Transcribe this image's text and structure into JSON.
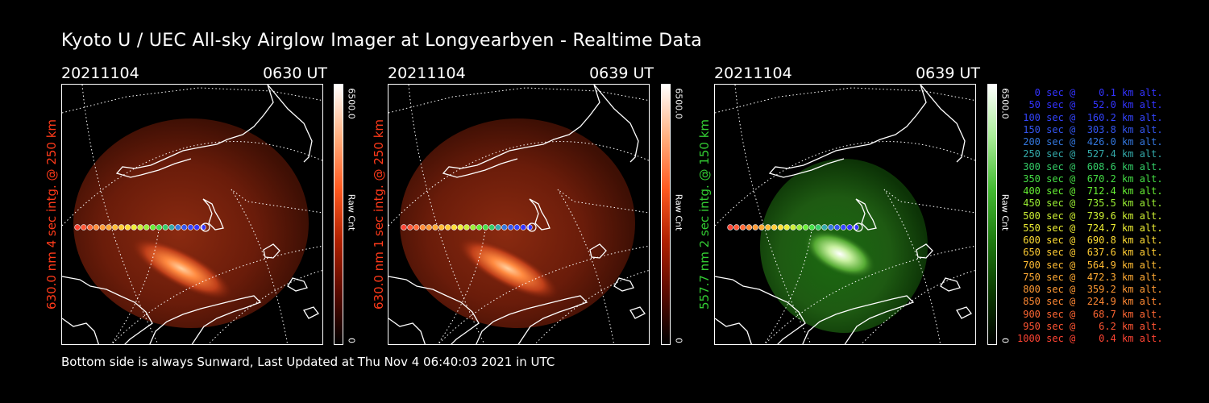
{
  "title": "Kyoto U / UEC All-sky Airglow Imager at Longyearbyen - Realtime Data",
  "footer": "Bottom side is always Sunward, Last Updated at Thu Nov  4 06:40:03 2021 in UTC",
  "panels": [
    {
      "date": "20211104",
      "time": "0630 UT",
      "side_label": "630.0 nm 4 sec intg. @ 250 km",
      "colorbar_max": "6500.0",
      "colorbar_min": "0",
      "colorbar_label": "Raw Cnt",
      "color": "#ff3a1a"
    },
    {
      "date": "20211104",
      "time": "0639 UT",
      "side_label": "630.0 nm 1 sec intg. @ 250 km",
      "colorbar_max": "6500.0",
      "colorbar_min": "0",
      "colorbar_label": "Raw Cnt",
      "color": "#ff3a1a"
    },
    {
      "date": "20211104",
      "time": "0639 UT",
      "side_label": "557.7 nm 2 sec intg. @ 150 km",
      "colorbar_max": "6500.0",
      "colorbar_min": "0",
      "colorbar_label": "Raw Cnt",
      "color": "#33cc33"
    }
  ],
  "legend": [
    {
      "text": "   0 sec @    0.1 km alt.",
      "color": "#3333ff"
    },
    {
      "text": "  50 sec @   52.0 km alt.",
      "color": "#3333ff"
    },
    {
      "text": " 100 sec @  160.2 km alt.",
      "color": "#3344ff"
    },
    {
      "text": " 150 sec @  303.8 km alt.",
      "color": "#3355ee"
    },
    {
      "text": " 200 sec @  426.0 km alt.",
      "color": "#3377dd"
    },
    {
      "text": " 250 sec @  527.4 km alt.",
      "color": "#33aaaa"
    },
    {
      "text": " 300 sec @  608.6 km alt.",
      "color": "#33cc66"
    },
    {
      "text": " 350 sec @  670.2 km alt.",
      "color": "#44dd44"
    },
    {
      "text": " 400 sec @  712.4 km alt.",
      "color": "#66ee33"
    },
    {
      "text": " 450 sec @  735.5 km alt.",
      "color": "#99ee33"
    },
    {
      "text": " 500 sec @  739.6 km alt.",
      "color": "#ccee33"
    },
    {
      "text": " 550 sec @  724.7 km alt.",
      "color": "#eeee33"
    },
    {
      "text": " 600 sec @  690.8 km alt.",
      "color": "#ffdd33"
    },
    {
      "text": " 650 sec @  637.6 km alt.",
      "color": "#ffcc33"
    },
    {
      "text": " 700 sec @  564.9 km alt.",
      "color": "#ffbb33"
    },
    {
      "text": " 750 sec @  472.3 km alt.",
      "color": "#ffaa33"
    },
    {
      "text": " 800 sec @  359.2 km alt.",
      "color": "#ff9933"
    },
    {
      "text": " 850 sec @  224.9 km alt.",
      "color": "#ff8833"
    },
    {
      "text": " 900 sec @   68.7 km alt.",
      "color": "#ff6633"
    },
    {
      "text": " 950 sec @    6.2 km alt.",
      "color": "#ff5533"
    },
    {
      "text": "1000 sec @    0.4 km alt.",
      "color": "#ff4433"
    }
  ]
}
